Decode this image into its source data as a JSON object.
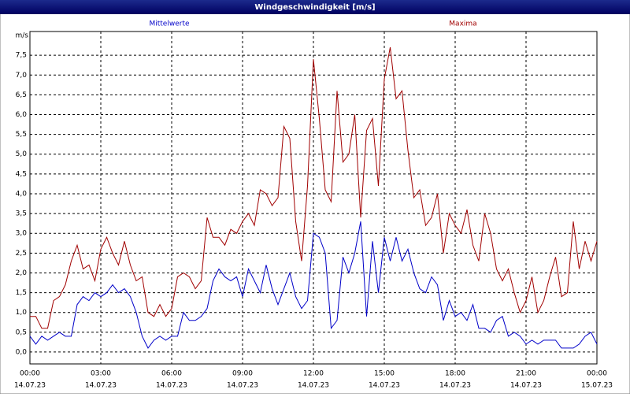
{
  "window_title": "Windgeschwindigkeit [m/s]",
  "chart_data": {
    "type": "line",
    "y_label": "m/s",
    "x": [
      0,
      15,
      30,
      45,
      60,
      75,
      90,
      105,
      120,
      135,
      150,
      165,
      180,
      195,
      210,
      225,
      240,
      255,
      270,
      285,
      300,
      315,
      330,
      345,
      360,
      375,
      390,
      405,
      420,
      435,
      450,
      465,
      480,
      495,
      510,
      525,
      540,
      555,
      570,
      585,
      600,
      615,
      630,
      645,
      660,
      675,
      690,
      705,
      720,
      735,
      750,
      765,
      780,
      795,
      810,
      825,
      840,
      855,
      870,
      885,
      900,
      915,
      930,
      945,
      960,
      975,
      990,
      1005,
      1020,
      1035,
      1050,
      1065,
      1080,
      1095,
      1110,
      1125,
      1140,
      1155,
      1170,
      1185,
      1200,
      1215,
      1230,
      1245,
      1260,
      1275,
      1290,
      1305,
      1320,
      1335,
      1350,
      1365,
      1380,
      1395,
      1410,
      1425,
      1440
    ],
    "series": [
      {
        "name": "Mittelwerte",
        "color": "#0000c8",
        "values": [
          0.4,
          0.2,
          0.4,
          0.3,
          0.4,
          0.5,
          0.4,
          0.4,
          1.2,
          1.4,
          1.3,
          1.5,
          1.4,
          1.5,
          1.7,
          1.5,
          1.6,
          1.4,
          1.0,
          0.4,
          0.1,
          0.3,
          0.4,
          0.3,
          0.4,
          0.4,
          1.0,
          0.8,
          0.8,
          0.9,
          1.1,
          1.8,
          2.1,
          1.9,
          1.8,
          1.9,
          1.4,
          2.1,
          1.8,
          1.5,
          2.2,
          1.6,
          1.2,
          1.6,
          2.0,
          1.4,
          1.1,
          1.3,
          3.0,
          2.9,
          2.5,
          0.6,
          0.8,
          2.4,
          2.0,
          2.5,
          3.3,
          0.9,
          2.8,
          1.5,
          2.9,
          2.3,
          2.9,
          2.3,
          2.6,
          2.0,
          1.6,
          1.5,
          1.9,
          1.7,
          0.8,
          1.3,
          0.9,
          1.0,
          0.8,
          1.2,
          0.6,
          0.6,
          0.5,
          0.8,
          0.9,
          0.4,
          0.5,
          0.4,
          0.2,
          0.3,
          0.2,
          0.3,
          0.3,
          0.3,
          0.1,
          0.1,
          0.1,
          0.2,
          0.4,
          0.5,
          0.2
        ]
      },
      {
        "name": "Maxima",
        "color": "#a00000",
        "values": [
          0.9,
          0.9,
          0.6,
          0.6,
          1.3,
          1.4,
          1.7,
          2.3,
          2.7,
          2.1,
          2.2,
          1.8,
          2.6,
          2.9,
          2.5,
          2.2,
          2.8,
          2.2,
          1.8,
          1.9,
          1.0,
          0.9,
          1.2,
          0.9,
          1.1,
          1.9,
          2.0,
          1.9,
          1.6,
          1.8,
          3.4,
          2.9,
          2.9,
          2.7,
          3.1,
          3.0,
          3.3,
          3.5,
          3.2,
          4.1,
          4.0,
          3.7,
          3.9,
          5.7,
          5.4,
          3.3,
          2.3,
          4.2,
          7.4,
          5.9,
          4.1,
          3.8,
          6.6,
          4.8,
          5.0,
          6.0,
          3.4,
          5.6,
          5.9,
          4.2,
          6.9,
          7.7,
          6.4,
          6.6,
          5.1,
          3.9,
          4.1,
          3.2,
          3.4,
          4.0,
          2.5,
          3.5,
          3.2,
          3.0,
          3.6,
          2.7,
          2.3,
          3.5,
          3.0,
          2.1,
          1.8,
          2.1,
          1.5,
          1.0,
          1.3,
          1.9,
          1.0,
          1.3,
          1.9,
          2.4,
          1.4,
          1.5,
          3.3,
          2.1,
          2.8,
          2.3,
          2.8
        ]
      }
    ],
    "xlim": [
      0,
      1440
    ],
    "xticks": [
      {
        "value": 0,
        "label": "00:00"
      },
      {
        "value": 180,
        "label": "03:00"
      },
      {
        "value": 360,
        "label": "06:00"
      },
      {
        "value": 540,
        "label": "09:00"
      },
      {
        "value": 720,
        "label": "12:00"
      },
      {
        "value": 900,
        "label": "15:00"
      },
      {
        "value": 1080,
        "label": "18:00"
      },
      {
        "value": 1260,
        "label": "21:00"
      },
      {
        "value": 1440,
        "label": "00:00"
      }
    ],
    "xtick_dates": [
      "14.07.23",
      "14.07.23",
      "14.07.23",
      "14.07.23",
      "14.07.23",
      "14.07.23",
      "14.07.23",
      "14.07.23",
      "15.07.23"
    ],
    "ylim": [
      -0.3,
      8.1
    ],
    "yticks": [
      {
        "value": 0,
        "label": "0,0"
      },
      {
        "value": 0.5,
        "label": "0,5"
      },
      {
        "value": 1,
        "label": "1,0"
      },
      {
        "value": 1.5,
        "label": "1,5"
      },
      {
        "value": 2,
        "label": "2,0"
      },
      {
        "value": 2.5,
        "label": "2,5"
      },
      {
        "value": 3,
        "label": "3,0"
      },
      {
        "value": 3.5,
        "label": "3,5"
      },
      {
        "value": 4,
        "label": "4,0"
      },
      {
        "value": 4.5,
        "label": "4,5"
      },
      {
        "value": 5,
        "label": "5,0"
      },
      {
        "value": 5.5,
        "label": "5,5"
      },
      {
        "value": 6,
        "label": "6,0"
      },
      {
        "value": 6.5,
        "label": "6,5"
      },
      {
        "value": 7,
        "label": "7,0"
      },
      {
        "value": 7.5,
        "label": "7,5"
      }
    ],
    "grid": true
  }
}
